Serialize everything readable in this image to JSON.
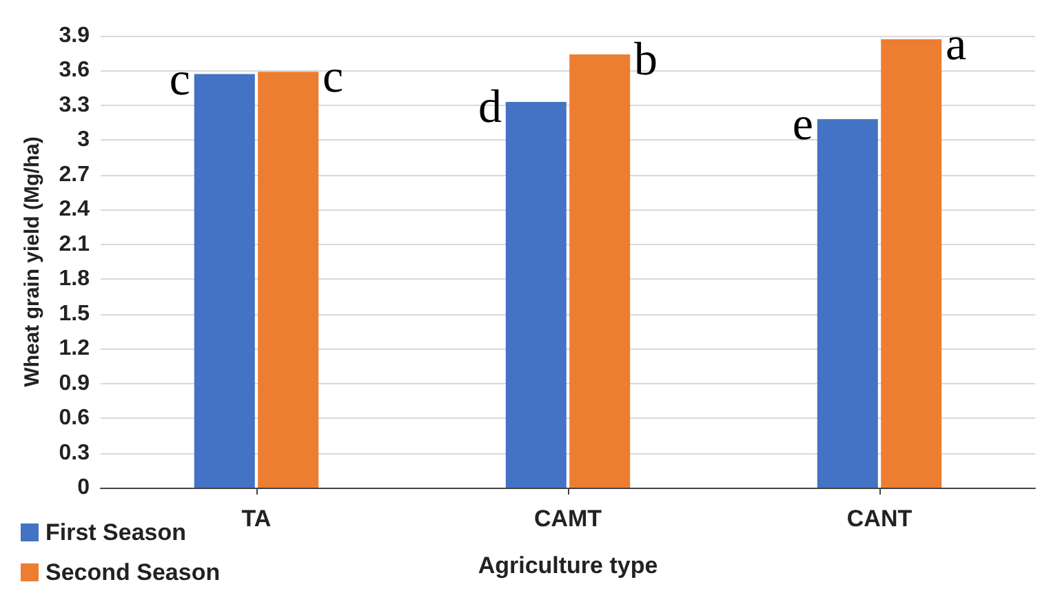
{
  "chart_data": {
    "type": "bar",
    "xlabel": "Agriculture type",
    "ylabel": "Wheat grain yield (Mg/ha)",
    "categories": [
      "TA",
      "CAMT",
      "CANT"
    ],
    "series": [
      {
        "name": "First Season",
        "color": "#4472c4",
        "values": [
          3.57,
          3.33,
          3.18
        ]
      },
      {
        "name": "Second Season",
        "color": "#ed7d31",
        "values": [
          3.59,
          3.74,
          3.87
        ]
      }
    ],
    "ylim": [
      0,
      3.9
    ],
    "yticks": [
      0,
      0.3,
      0.6,
      0.9,
      1.2,
      1.5,
      1.8,
      2.1,
      2.4,
      2.7,
      3,
      3.3,
      3.6,
      3.9
    ],
    "grid": "y",
    "legend": "bottom left",
    "annotations": [
      {
        "text": "c",
        "x": "TA",
        "y": 3.57
      },
      {
        "text": "c",
        "x": "TA",
        "y": 3.59
      },
      {
        "text": "d",
        "x": "CAMT",
        "y": 3.33
      },
      {
        "text": "b",
        "x": "CAMT",
        "y": 3.74
      },
      {
        "text": "e",
        "x": "CANT",
        "y": 3.18
      },
      {
        "text": "a",
        "x": "CANT",
        "y": 3.87
      }
    ]
  }
}
